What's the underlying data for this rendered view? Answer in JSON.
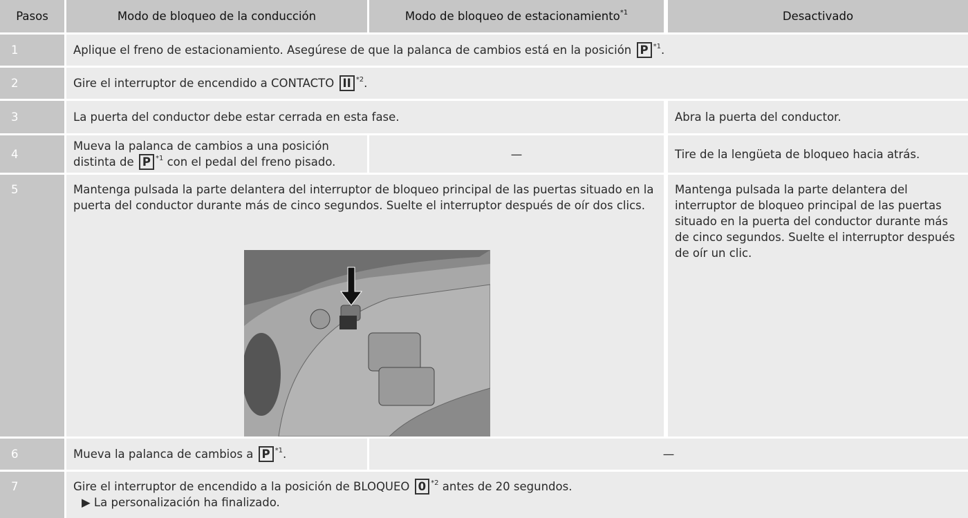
{
  "table": {
    "header": [
      "Pasos",
      "Modo de bloqueo de la conducción",
      [
        {
          "t": "Modo de bloqueo de estacionamiento"
        },
        {
          "sup": "*1"
        }
      ],
      "Desactivado"
    ],
    "rows": [
      {
        "step": "1",
        "cells": [
          [
            {
              "t": "Aplique el freno de estacionamiento. Asegúrese de que la palanca de cambios está en la posición "
            },
            {
              "box": "P"
            },
            {
              "sup": "*1"
            },
            {
              "t": "."
            }
          ]
        ]
      },
      {
        "step": "2",
        "cells": [
          [
            {
              "t": "Gire el interruptor de encendido a CONTACTO "
            },
            {
              "box": "II"
            },
            {
              "sup": "*2"
            },
            {
              "t": "."
            }
          ]
        ]
      },
      {
        "step": "3",
        "cells": [
          [
            {
              "t": "La puerta del conductor debe estar cerrada en esta fase."
            }
          ],
          [
            {
              "t": "Abra la puerta del conductor."
            }
          ]
        ]
      },
      {
        "step": "4",
        "cells": [
          [
            {
              "t": "Mueva la palanca de cambios a una posición distinta de "
            },
            {
              "box": "P"
            },
            {
              "sup": "*1"
            },
            {
              "t": " con el pedal del freno pisado."
            }
          ],
          [
            {
              "t": "—"
            }
          ],
          [
            {
              "t": "Tire de la lengüeta de bloqueo hacia atrás."
            }
          ]
        ]
      },
      {
        "step": "5",
        "cells": [
          [
            {
              "t": "Mantenga pulsada la parte delantera del interruptor de bloqueo principal de las puertas situado en la puerta del conductor durante más de cinco segundos. Suelte el interruptor después de oír dos clics."
            }
          ],
          [
            {
              "t": "Mantenga pulsada la parte delantera del interruptor de bloqueo principal de las puertas situado en la puerta del conductor durante más de cinco segundos. Suelte el interruptor después de oír un clic."
            }
          ]
        ]
      },
      {
        "step": "6",
        "cells": [
          [
            {
              "t": "Mueva la palanca de cambios a "
            },
            {
              "box": "P"
            },
            {
              "sup": "*1"
            },
            {
              "t": "."
            }
          ],
          [
            {
              "t": "—"
            }
          ]
        ]
      },
      {
        "step": "7",
        "cells": [
          [
            {
              "t": "Gire el interruptor de encendido a la posición de BLOQUEO "
            },
            {
              "box": "0"
            },
            {
              "sup": "*2"
            },
            {
              "t": " antes de 20 segundos."
            },
            {
              "line": "▶ La personalización ha finalizado."
            }
          ]
        ]
      }
    ]
  }
}
